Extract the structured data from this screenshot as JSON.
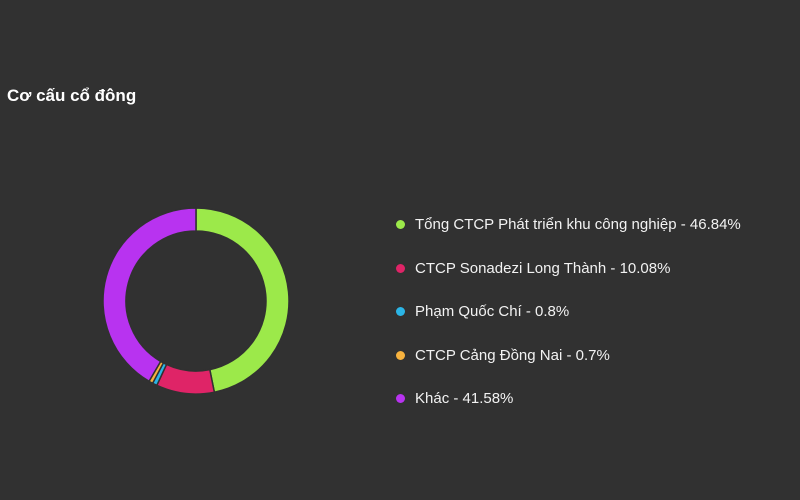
{
  "chart_data": {
    "type": "pie",
    "title": "Cơ cấu cổ đông",
    "donut": true,
    "legend_position": "right",
    "slices": [
      {
        "label": "Tổng CTCP Phát triển khu công nghiệp - 46.84%",
        "value": 46.84,
        "color": "#9ce94a"
      },
      {
        "label": "CTCP Sonadezi Long Thành - 10.08%",
        "value": 10.08,
        "color": "#df2467"
      },
      {
        "label": "Phạm Quốc Chí - 0.8%",
        "value": 0.8,
        "color": "#2bb5e6"
      },
      {
        "label": "CTCP Cảng Đồng Nai - 0.7%",
        "value": 0.7,
        "color": "#f7b23e"
      },
      {
        "label": "Khác - 41.58%",
        "value": 41.58,
        "color": "#b833f0"
      }
    ]
  }
}
